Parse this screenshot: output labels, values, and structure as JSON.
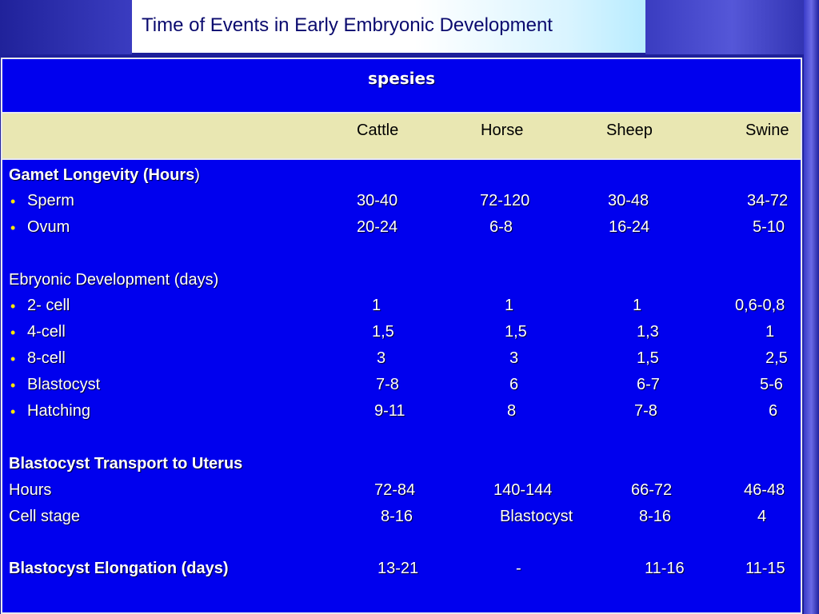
{
  "title": "Time of Events in Early Embryonic Development",
  "table": {
    "group_header": "spesies",
    "columns": [
      "Cattle",
      "Horse",
      "Sheep",
      "Swine"
    ],
    "sections": {
      "gamet": {
        "title": "Gamet Longevity (Hours",
        "title_close": ")",
        "rows": [
          {
            "label": "Sperm",
            "values": [
              "30-40",
              "72-120",
              "30-48",
              "34-72"
            ]
          },
          {
            "label": "Ovum",
            "values": [
              "20-24",
              "6-8",
              "16-24",
              "5-10"
            ]
          }
        ]
      },
      "embryonic": {
        "title": "Ebryonic Development (days)",
        "rows": [
          {
            "label": "2- cell",
            "values": [
              "1",
              "1",
              "1",
              "0,6-0,8"
            ]
          },
          {
            "label": "4-cell",
            "values": [
              "1,5",
              "1,5",
              "1,3",
              "1"
            ]
          },
          {
            "label": "8-cell",
            "values": [
              "3",
              "3",
              "1,5",
              "2,5"
            ]
          },
          {
            "label": "Blastocyst",
            "values": [
              "7-8",
              "6",
              "6-7",
              "5-6"
            ]
          },
          {
            "label": "Hatching",
            "values": [
              "9-11",
              "8",
              "7-8",
              "6"
            ]
          }
        ]
      },
      "transport": {
        "title": "Blastocyst Transport to Uterus",
        "rows": [
          {
            "label": "Hours",
            "values": [
              "72-84",
              "140-144",
              "66-72",
              "46-48"
            ]
          },
          {
            "label": "Cell stage",
            "values": [
              "8-16",
              "Blastocyst",
              "8-16",
              "4"
            ]
          }
        ]
      },
      "elongation": {
        "label": "Blastocyst Elongation (days)",
        "values": [
          "13-21",
          "-",
          "11-16",
          "11-15"
        ]
      }
    }
  },
  "colors": {
    "table_bg": "#0000ee",
    "header_row_bg": "#e9e7b2",
    "bullet": "#ffe600",
    "title_text": "#0a0a6e"
  }
}
